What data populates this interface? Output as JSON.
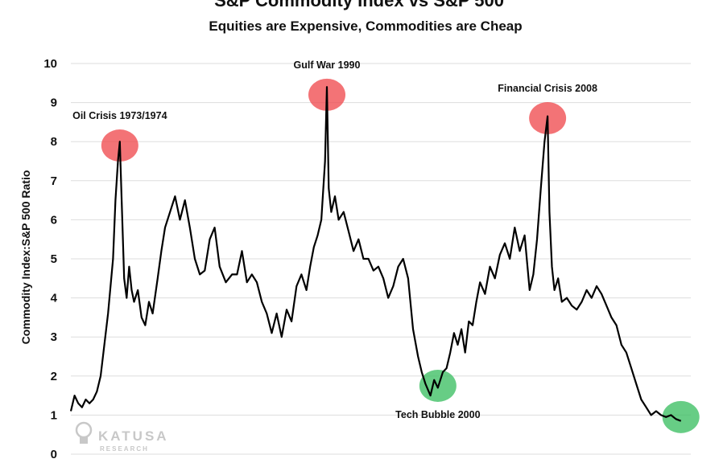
{
  "chart_data": {
    "type": "line",
    "title": "S&P Commodity Index vs S&P 500",
    "subtitle": "Equities are Expensive, Commodities are Cheap",
    "ylabel": "Commodity Index:S&P 500 Ratio",
    "xlabel": "",
    "ylim": [
      0,
      10
    ],
    "yticks": [
      "0",
      "1",
      "2",
      "3",
      "4",
      "5",
      "6",
      "7",
      "8",
      "9",
      "10"
    ],
    "grid": true,
    "line_color": "#000000",
    "peak_color": "#ef4b50",
    "trough_color": "#3cbf63",
    "series": [
      {
        "x": [
          1970.0,
          1970.3,
          1970.6,
          1970.9,
          1971.2,
          1971.5,
          1971.8,
          1972.1,
          1972.4,
          1972.7,
          1973.0,
          1973.2,
          1973.4,
          1973.6,
          1973.8,
          1973.95,
          1974.1,
          1974.3,
          1974.5,
          1974.7,
          1974.9,
          1975.1,
          1975.4,
          1975.7,
          1976.0,
          1976.3,
          1976.6,
          1977.0,
          1977.3,
          1977.6,
          1978.0,
          1978.4,
          1978.8,
          1979.2,
          1979.6,
          1980.0,
          1980.4,
          1980.8,
          1981.2,
          1981.6,
          1982.0,
          1982.5,
          1983.0,
          1983.4,
          1983.8,
          1984.2,
          1984.6,
          1985.0,
          1985.4,
          1985.8,
          1986.2,
          1986.6,
          1987.0,
          1987.4,
          1987.8,
          1988.2,
          1988.6,
          1989.0,
          1989.3,
          1989.6,
          1989.9,
          1990.2,
          1990.5,
          1990.65,
          1990.8,
          1991.0,
          1991.3,
          1991.6,
          1992.0,
          1992.4,
          1992.8,
          1993.2,
          1993.6,
          1994.0,
          1994.4,
          1994.8,
          1995.2,
          1995.6,
          1996.0,
          1996.4,
          1996.8,
          1997.2,
          1997.6,
          1998.0,
          1998.3,
          1998.6,
          1999.0,
          1999.3,
          1999.6,
          2000.0,
          2000.3,
          2000.6,
          2000.9,
          2001.2,
          2001.5,
          2001.8,
          2002.1,
          2002.4,
          2002.7,
          2003.0,
          2003.4,
          2003.8,
          2004.2,
          2004.6,
          2005.0,
          2005.4,
          2005.8,
          2006.2,
          2006.6,
          2007.0,
          2007.3,
          2007.6,
          2007.9,
          2008.2,
          2008.45,
          2008.6,
          2008.8,
          2009.0,
          2009.3,
          2009.6,
          2010.0,
          2010.4,
          2010.8,
          2011.2,
          2011.6,
          2012.0,
          2012.4,
          2012.8,
          2013.2,
          2013.6,
          2014.0,
          2014.4,
          2014.8,
          2015.2,
          2015.6,
          2016.0,
          2016.4,
          2016.8,
          2017.2,
          2017.6,
          2018.0,
          2018.4,
          2018.8,
          2019.2
        ],
        "y": [
          1.1,
          1.5,
          1.3,
          1.2,
          1.4,
          1.3,
          1.4,
          1.6,
          2.0,
          2.8,
          3.6,
          4.3,
          5.0,
          6.5,
          7.5,
          8.0,
          6.5,
          4.5,
          4.0,
          4.8,
          4.2,
          3.9,
          4.2,
          3.5,
          3.3,
          3.9,
          3.6,
          4.5,
          5.2,
          5.8,
          6.2,
          6.6,
          6.0,
          6.5,
          5.8,
          5.0,
          4.6,
          4.7,
          5.5,
          5.8,
          4.8,
          4.4,
          4.6,
          4.6,
          5.2,
          4.4,
          4.6,
          4.4,
          3.9,
          3.6,
          3.1,
          3.6,
          3.0,
          3.7,
          3.4,
          4.3,
          4.6,
          4.2,
          4.8,
          5.3,
          5.6,
          6.0,
          7.5,
          9.4,
          6.8,
          6.2,
          6.6,
          6.0,
          6.2,
          5.7,
          5.2,
          5.5,
          5.0,
          5.0,
          4.7,
          4.8,
          4.5,
          4.0,
          4.3,
          4.8,
          5.0,
          4.5,
          3.2,
          2.5,
          2.1,
          1.8,
          1.5,
          1.9,
          1.7,
          2.1,
          2.2,
          2.6,
          3.1,
          2.8,
          3.2,
          2.6,
          3.4,
          3.3,
          3.9,
          4.4,
          4.1,
          4.8,
          4.5,
          5.1,
          5.4,
          5.0,
          5.8,
          5.2,
          5.6,
          4.2,
          4.6,
          5.5,
          6.8,
          8.0,
          8.65,
          6.2,
          4.8,
          4.2,
          4.5,
          3.9,
          4.0,
          3.8,
          3.7,
          3.9,
          4.2,
          4.0,
          4.3,
          4.1,
          3.8,
          3.5,
          3.3,
          2.8,
          2.6,
          2.2,
          1.8,
          1.4,
          1.2,
          1.0,
          1.1,
          1.0,
          0.95,
          1.0,
          0.9,
          0.85
        ]
      }
    ],
    "annotations": [
      {
        "label": "Oil Crisis 1973/1974",
        "x": 1973.95,
        "y": 7.9,
        "kind": "peak"
      },
      {
        "label": "Gulf War 1990",
        "x": 1990.65,
        "y": 9.2,
        "kind": "peak"
      },
      {
        "label": "Financial Crisis 2008",
        "x": 2008.45,
        "y": 8.6,
        "kind": "peak"
      },
      {
        "label": "Tech Bubble 2000",
        "x": 1999.6,
        "y": 1.75,
        "kind": "trough"
      },
      {
        "label": "",
        "x": 2019.2,
        "y": 0.95,
        "kind": "trough"
      }
    ],
    "xlim": [
      1970,
      2020
    ]
  },
  "watermark": {
    "brand": "KATUSA",
    "sub": "RESEARCH"
  }
}
